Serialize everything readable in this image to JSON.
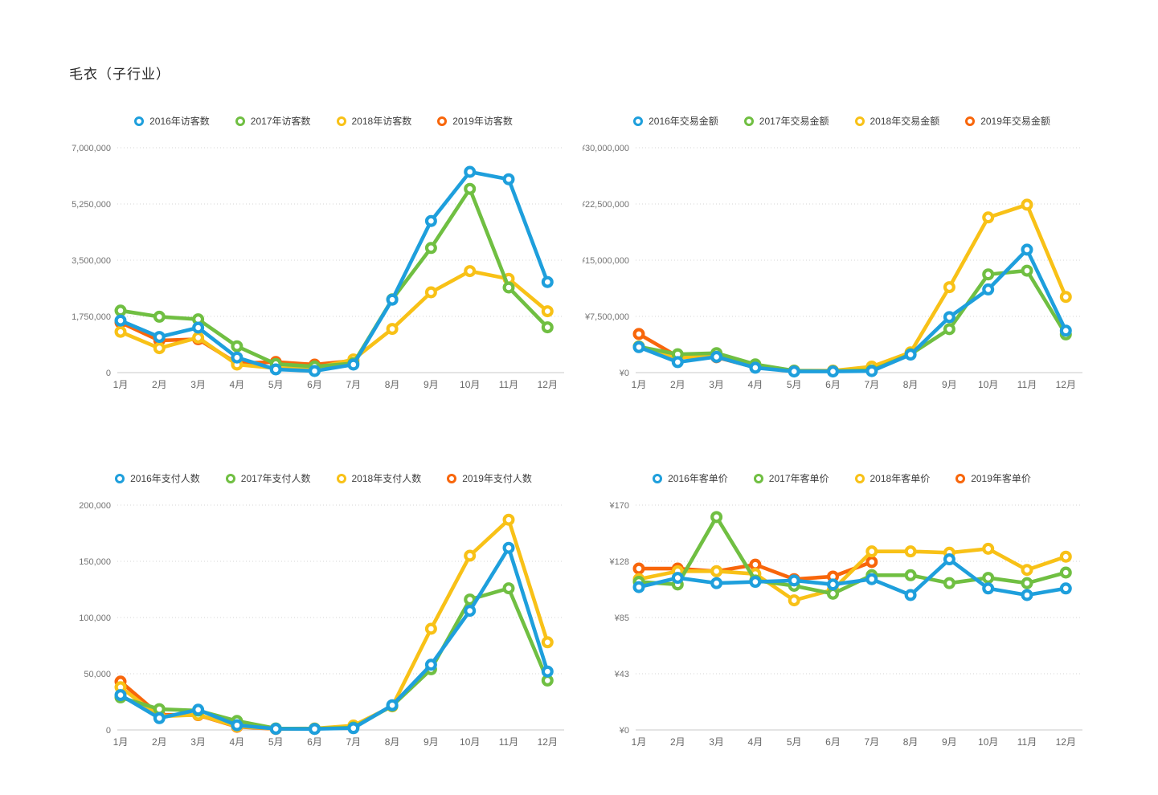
{
  "page_title": "毛衣（子行业）",
  "palette": {
    "y2016": "#1E9FDC",
    "y2017": "#70BF42",
    "y2018": "#F8C117",
    "y2019": "#F8660B"
  },
  "months": [
    "1月",
    "2月",
    "3月",
    "4月",
    "5月",
    "6月",
    "7月",
    "8月",
    "9月",
    "10月",
    "11月",
    "12月"
  ],
  "chart_data": [
    {
      "type": "line",
      "title": "访客数",
      "ylim": [
        0,
        7000000
      ],
      "grid": "dotted",
      "legend_position": "top-center",
      "y_tick_labels": [
        "7,000,000",
        "5,250,000",
        "3,500,000",
        "1,750,000",
        "0"
      ],
      "categories": [
        "1月",
        "2月",
        "3月",
        "4月",
        "5月",
        "6月",
        "7月",
        "8月",
        "9月",
        "10月",
        "11月",
        "12月"
      ],
      "series": [
        {
          "name": "2016年访客数",
          "color_key": "y2016",
          "values": [
            1620000,
            1110000,
            1400000,
            470000,
            100000,
            50000,
            250000,
            2270000,
            4720000,
            6250000,
            6020000,
            2820000
          ]
        },
        {
          "name": "2017年访客数",
          "color_key": "y2017",
          "values": [
            1930000,
            1740000,
            1660000,
            820000,
            270000,
            190000,
            290000,
            2280000,
            3880000,
            5720000,
            2650000,
            1410000
          ]
        },
        {
          "name": "2018年访客数",
          "color_key": "y2018",
          "values": [
            1270000,
            760000,
            1090000,
            250000,
            140000,
            140000,
            410000,
            1360000,
            2500000,
            3160000,
            2920000,
            1910000
          ]
        },
        {
          "name": "2019年访客数",
          "color_key": "y2019",
          "values": [
            1560000,
            1000000,
            1040000,
            290000,
            330000,
            250000,
            370000
          ]
        }
      ]
    },
    {
      "type": "line",
      "title": "交易金额",
      "ylim": [
        0,
        30000000
      ],
      "grid": "dotted",
      "legend_position": "top-center",
      "y_tick_labels": [
        "¥30,000,000",
        "¥22,500,000",
        "¥15,000,000",
        "¥7,500,000",
        "¥0"
      ],
      "categories": [
        "1月",
        "2月",
        "3月",
        "4月",
        "5月",
        "6月",
        "7月",
        "8月",
        "9月",
        "10月",
        "11月",
        "12月"
      ],
      "series": [
        {
          "name": "2016年交易金额",
          "color_key": "y2016",
          "values": [
            3400000,
            1400000,
            2100000,
            650000,
            150000,
            150000,
            200000,
            2400000,
            7400000,
            11100000,
            16400000,
            5600000
          ]
        },
        {
          "name": "2017年交易金额",
          "color_key": "y2017",
          "values": [
            3450000,
            2450000,
            2600000,
            1100000,
            250000,
            200000,
            300000,
            2450000,
            5800000,
            13100000,
            13600000,
            5100000
          ]
        },
        {
          "name": "2018年交易金额",
          "color_key": "y2018",
          "values": [
            3500000,
            2000000,
            2250000,
            700000,
            200000,
            250000,
            800000,
            2700000,
            11400000,
            20700000,
            22400000,
            10100000
          ]
        },
        {
          "name": "2019年交易金额",
          "color_key": "y2019",
          "values": [
            5150000,
            2150000,
            2050000,
            700000,
            250000,
            250000,
            400000
          ]
        }
      ]
    },
    {
      "type": "line",
      "title": "支付人数",
      "ylim": [
        0,
        200000
      ],
      "grid": "dotted",
      "legend_position": "top-center",
      "y_tick_labels": [
        "200,000",
        "150,000",
        "100,000",
        "50,000",
        "0"
      ],
      "categories": [
        "1月",
        "2月",
        "3月",
        "4月",
        "5月",
        "6月",
        "7月",
        "8月",
        "9月",
        "10月",
        "11月",
        "12月"
      ],
      "series": [
        {
          "name": "2016年支付人数",
          "color_key": "y2016",
          "values": [
            31000,
            10500,
            18000,
            4200,
            1000,
            900,
            1600,
            22000,
            58000,
            106000,
            162000,
            52000
          ]
        },
        {
          "name": "2017年支付人数",
          "color_key": "y2017",
          "values": [
            29000,
            18500,
            17200,
            8000,
            1300,
            1100,
            2100,
            21500,
            54000,
            116000,
            126000,
            44000
          ]
        },
        {
          "name": "2018年支付人数",
          "color_key": "y2018",
          "values": [
            38000,
            12000,
            13500,
            3200,
            1100,
            1300,
            3900,
            21000,
            90000,
            155000,
            187000,
            78000
          ]
        },
        {
          "name": "2019年支付人数",
          "color_key": "y2019",
          "values": [
            43000,
            13500,
            13200,
            2800,
            900,
            1000,
            2500
          ]
        }
      ]
    },
    {
      "type": "line",
      "title": "客单价",
      "ylim": [
        0,
        170
      ],
      "grid": "dotted",
      "legend_position": "top-center",
      "y_tick_labels": [
        "¥170",
        "¥128",
        "¥85",
        "¥43",
        "¥0"
      ],
      "categories": [
        "1月",
        "2月",
        "3月",
        "4月",
        "5月",
        "6月",
        "7月",
        "8月",
        "9月",
        "10月",
        "11月",
        "12月"
      ],
      "series": [
        {
          "name": "2016年客单价",
          "color_key": "y2016",
          "values": [
            108,
            115,
            111,
            112,
            113,
            110,
            114,
            102,
            129,
            107,
            102,
            107
          ]
        },
        {
          "name": "2017年客单价",
          "color_key": "y2017",
          "values": [
            112,
            110,
            161,
            113,
            109,
            103,
            117,
            117,
            111,
            115,
            111,
            119
          ]
        },
        {
          "name": "2018年客单价",
          "color_key": "y2018",
          "values": [
            114,
            120,
            120,
            118,
            98,
            106,
            135,
            135,
            134,
            137,
            121,
            131
          ]
        },
        {
          "name": "2019年客单价",
          "color_key": "y2019",
          "values": [
            122,
            122,
            120,
            125,
            114,
            116,
            127
          ]
        }
      ]
    }
  ]
}
